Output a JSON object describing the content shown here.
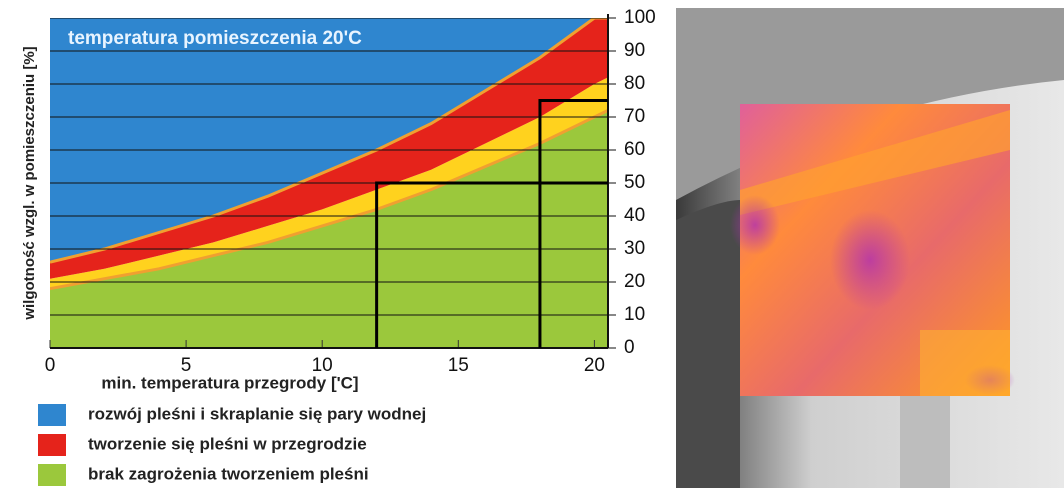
{
  "chart_data": {
    "type": "stacked_area",
    "title": "temperatura pomieszczenia 20'C",
    "x_label": "min. temperatura przegrody ['C]",
    "y_label": "wilgotność wzgl. w pomieszczeniu [%]",
    "x": [
      0,
      2,
      4,
      6,
      8,
      10,
      12,
      14,
      16,
      18,
      20,
      20.5
    ],
    "series": [
      {
        "name": "brak zagrożenia tworzeniem pleśni",
        "color": "#9bc83c",
        "values": [
          18,
          21,
          24,
          28,
          32,
          37,
          42,
          48,
          55,
          62,
          70,
          72
        ]
      },
      {
        "color": "#ffd21e",
        "values": [
          3,
          3,
          4,
          4,
          5,
          5,
          6,
          6,
          7,
          8,
          10,
          10
        ]
      },
      {
        "name": "tworzenie się pleśni w przegrodzie",
        "color": "#e5231b",
        "values": [
          5,
          6,
          7,
          8,
          9,
          11,
          12,
          14,
          16,
          18,
          20,
          18
        ]
      },
      {
        "name": "rozwój pleśni i skraplanie się pary wodnej",
        "color": "#2f86cf",
        "values": [
          74,
          70,
          65,
          60,
          54,
          47,
          40,
          32,
          22,
          12,
          0,
          0
        ]
      }
    ],
    "edge_color": "#f0a030",
    "guides": [
      {
        "x": 12,
        "y": 50
      },
      {
        "x": 18,
        "y": 75
      }
    ],
    "xlim": [
      0,
      20.5
    ],
    "xticks": [
      0,
      5,
      10,
      15,
      20
    ],
    "ylim": [
      0,
      100
    ],
    "yticks": [
      0,
      10,
      20,
      30,
      40,
      50,
      60,
      70,
      80,
      90,
      100
    ],
    "grid": true
  }
}
